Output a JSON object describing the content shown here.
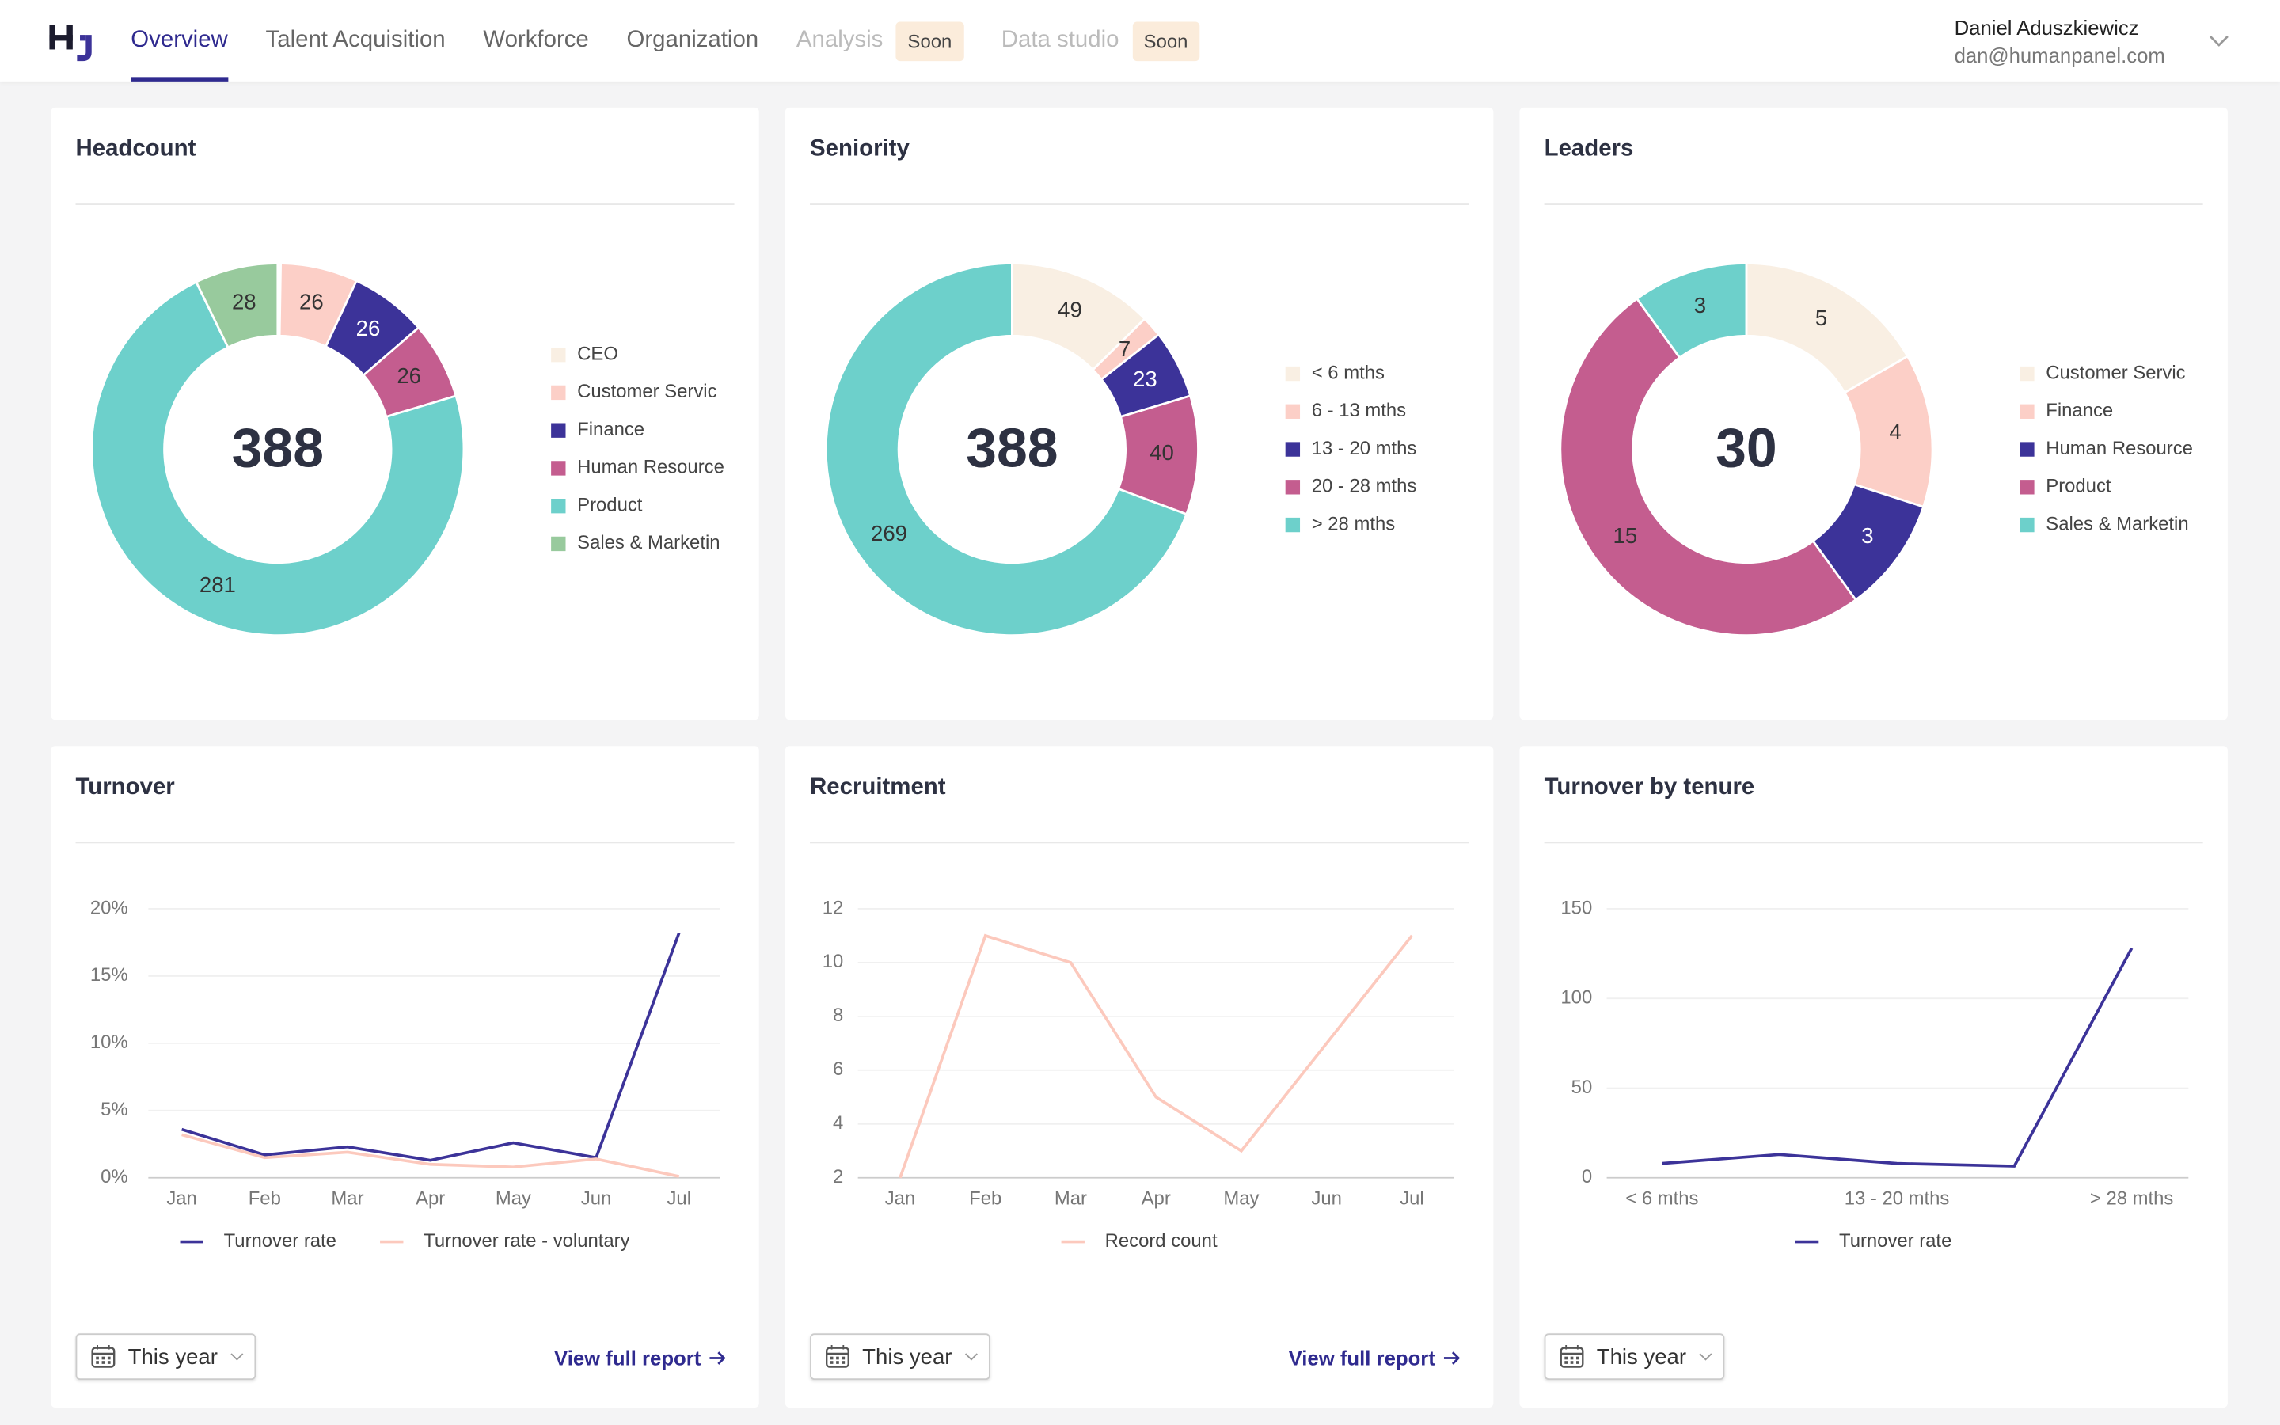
{
  "nav": {
    "items": [
      {
        "label": "Overview"
      },
      {
        "label": "Talent Acquisition"
      },
      {
        "label": "Workforce"
      },
      {
        "label": "Organization"
      },
      {
        "label": "Analysis",
        "badge": "Soon"
      },
      {
        "label": "Data studio",
        "badge": "Soon"
      }
    ]
  },
  "user": {
    "name": "Daniel Aduszkiewicz",
    "email": "dan@humanpanel.com"
  },
  "chart_data": [
    {
      "type": "donut",
      "title": "Headcount",
      "center_value": 388,
      "categories": [
        "CEO",
        "Customer Servic",
        "Finance",
        "Human Resource",
        "Product",
        "Sales & Marketin"
      ],
      "values": [
        1,
        26,
        26,
        26,
        281,
        28
      ],
      "colors": [
        "#f9efe3",
        "#fccfc7",
        "#3c3399",
        "#c45d8f",
        "#6dd0cb",
        "#98ca9d"
      ]
    },
    {
      "type": "donut",
      "title": "Seniority",
      "center_value": 388,
      "categories": [
        "< 6 mths",
        "6 - 13 mths",
        "13 - 20 mths",
        "20 - 28 mths",
        "> 28 mths"
      ],
      "values": [
        49,
        7,
        23,
        40,
        269
      ],
      "colors": [
        "#f9efe3",
        "#fccfc7",
        "#3c3399",
        "#c45d8f",
        "#6dd0cb"
      ]
    },
    {
      "type": "donut",
      "title": "Leaders",
      "center_value": 30,
      "categories": [
        "Customer Servic",
        "Finance",
        "Human Resource",
        "Product",
        "Sales & Marketin"
      ],
      "values": [
        5,
        4,
        3,
        15,
        3
      ],
      "colors": [
        "#f9efe3",
        "#fccfc7",
        "#3c3399",
        "#c45d8f",
        "#6dd0cb"
      ]
    },
    {
      "type": "line",
      "title": "Turnover",
      "grid": true,
      "categories": [
        "Jan",
        "Feb",
        "Mar",
        "Apr",
        "May",
        "Jun",
        "Jul"
      ],
      "series": [
        {
          "name": "Turnover rate",
          "color": "#3c3399",
          "values": [
            3.6,
            1.7,
            2.3,
            1.3,
            2.6,
            1.5,
            18.2
          ]
        },
        {
          "name": "Turnover rate - voluntary",
          "color": "#fcc9bd",
          "values": [
            3.2,
            1.5,
            1.9,
            1.0,
            0.8,
            1.4,
            0.1
          ]
        }
      ],
      "ylim": [
        0,
        20
      ],
      "yticks": [
        {
          "value": 0,
          "label": "0%"
        },
        {
          "value": 5,
          "label": "5%"
        },
        {
          "value": 10,
          "label": "10%"
        },
        {
          "value": 15,
          "label": "15%"
        },
        {
          "value": 20,
          "label": "20%"
        }
      ],
      "filter": "This year",
      "link": "View full report"
    },
    {
      "type": "line",
      "title": "Recruitment",
      "grid": true,
      "categories": [
        "Jan",
        "Feb",
        "Mar",
        "Apr",
        "May",
        "Jun",
        "Jul"
      ],
      "series": [
        {
          "name": "Record count",
          "color": "#fcc9bd",
          "values": [
            2,
            11,
            10,
            5,
            3,
            7,
            11
          ]
        }
      ],
      "ylim": [
        2,
        12
      ],
      "yticks": [
        2,
        4,
        6,
        8,
        10,
        12
      ],
      "filter": "This year",
      "link": "View full report"
    },
    {
      "type": "line",
      "title": "Turnover by tenure",
      "grid": true,
      "categories": [
        "< 6 mths",
        null,
        "13 - 20 mths",
        null,
        "> 28 mths"
      ],
      "series": [
        {
          "name": "Turnover rate",
          "color": "#3c3399",
          "values": [
            8,
            13,
            8,
            6.5,
            128
          ]
        }
      ],
      "ylim": [
        0,
        150
      ],
      "yticks": [
        0,
        50,
        100,
        150
      ],
      "filter": "This year"
    }
  ]
}
